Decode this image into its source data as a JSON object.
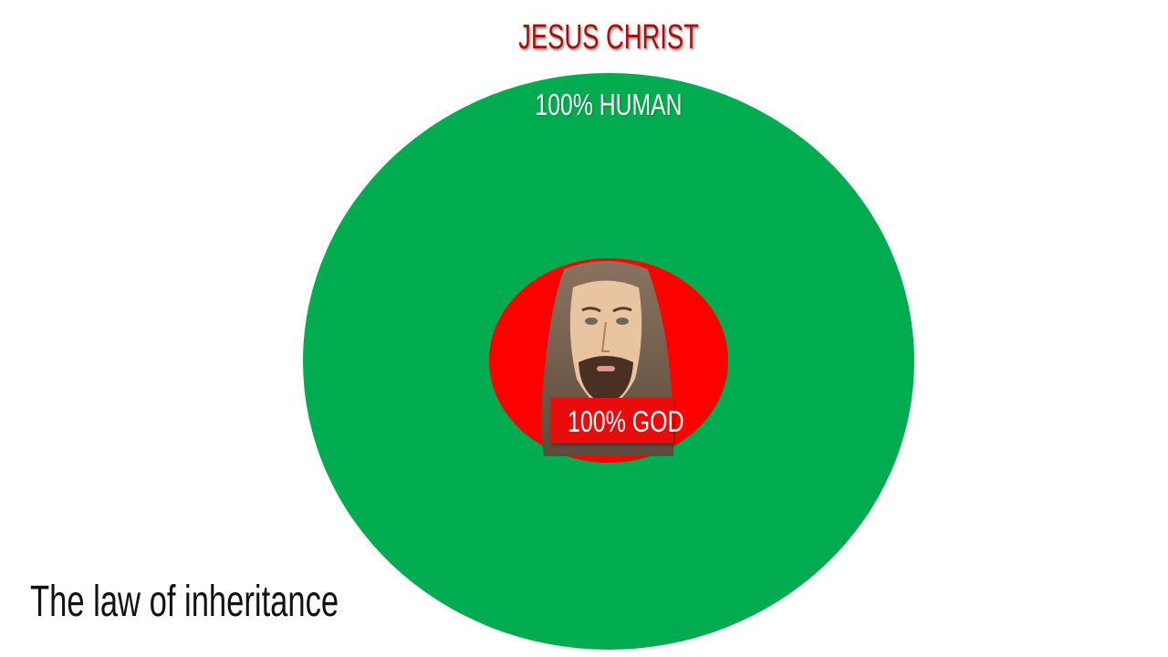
{
  "title": "JESUS CHRIST",
  "outer_circle": {
    "label": "100% HUMAN",
    "color": "#00ac4f"
  },
  "inner_circle": {
    "label": "100% GOD",
    "color": "#fe0000"
  },
  "portrait": {
    "subject": "watercolor portrait of Jesus"
  },
  "caption": "The law of inheritance",
  "colors": {
    "title": "#a8100e"
  }
}
